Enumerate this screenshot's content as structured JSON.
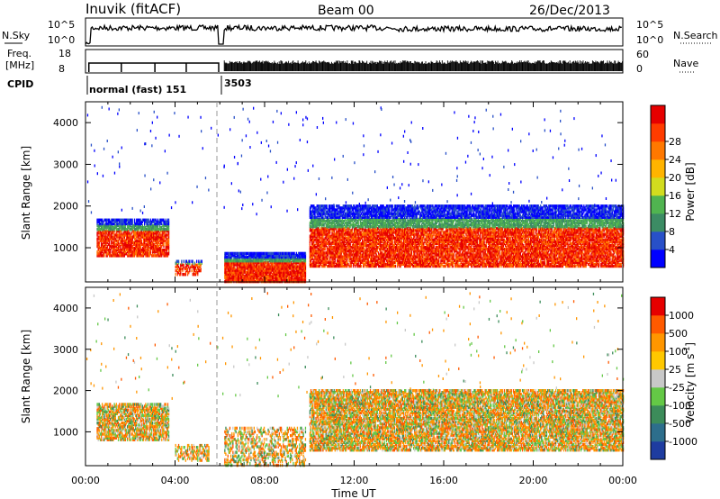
{
  "header": {
    "station": "Inuvik (fitACF)",
    "beam": "Beam 00",
    "date": "26/Dec/2013"
  },
  "top_panel": {
    "left_label": "N.Sky",
    "left_ticks": [
      "10^5",
      "10^0"
    ],
    "right_label": "N.Search",
    "right_ticks": [
      "10^5",
      "10^0"
    ]
  },
  "freq_panel": {
    "left_label_1": "Freq.",
    "left_label_2": "[MHz]",
    "left_ticks": [
      "18",
      "8"
    ],
    "right_label": "Nave",
    "right_ticks": [
      "60",
      "0"
    ]
  },
  "cpid": {
    "label": "CPID",
    "mode_1": "normal (fast) 151",
    "mode_2": "3503"
  },
  "chart_data": [
    {
      "type": "heatmap",
      "name": "Power",
      "xlabel": "",
      "ylabel": "Slant Range [km]",
      "x_ticks": [
        "00:00",
        "04:00",
        "08:00",
        "12:00",
        "16:00",
        "20:00",
        "00:00"
      ],
      "y_ticks": [
        "1000",
        "2000",
        "3000",
        "4000"
      ],
      "xlim_hours": [
        0,
        24
      ],
      "ylim_km": [
        180,
        4500
      ],
      "colorbar": {
        "label": "Power [dB]",
        "ticks": [
          "4",
          "8",
          "12",
          "16",
          "20",
          "24",
          "28"
        ],
        "colors": [
          "#0000ff",
          "#2850c8",
          "#3c8c64",
          "#50b450",
          "#d2dc1e",
          "#ffb400",
          "#ff7800",
          "#ff3c00",
          "#e60000"
        ]
      },
      "scatter_regions": [
        {
          "t0": 0.5,
          "t1": 3.7,
          "r0": 800,
          "r1": 1700,
          "level": 0.85
        },
        {
          "t0": 4.0,
          "t1": 5.2,
          "r0": 350,
          "r1": 700,
          "level": 0.55
        },
        {
          "t0": 6.2,
          "t1": 9.8,
          "r0": 180,
          "r1": 900,
          "level": 0.95
        },
        {
          "t0": 10.0,
          "t1": 24.0,
          "r0": 550,
          "r1": 2000,
          "level": 0.85
        }
      ]
    },
    {
      "type": "heatmap",
      "name": "Velocity",
      "xlabel": "Time UT",
      "ylabel": "Slant Range [km]",
      "x_ticks": [
        "00:00",
        "04:00",
        "08:00",
        "12:00",
        "16:00",
        "20:00",
        "00:00"
      ],
      "y_ticks": [
        "1000",
        "2000",
        "3000",
        "4000"
      ],
      "xlim_hours": [
        0,
        24
      ],
      "ylim_km": [
        180,
        4500
      ],
      "colorbar": {
        "label": "Velocity [m s",
        "label_sup": "-1",
        "label_end": "]",
        "ticks": [
          "1000",
          "500",
          "100",
          "25",
          "-25",
          "-100",
          "-500",
          "-1000"
        ],
        "colors": [
          "#1e3ca0",
          "#2d6e8c",
          "#3c8c5a",
          "#64c846",
          "#c8c8c8",
          "#ffc800",
          "#ff9600",
          "#ff5a00",
          "#e60000"
        ]
      },
      "scatter_regions": [
        {
          "t0": 0.5,
          "t1": 3.7,
          "r0": 800,
          "r1": 1700,
          "level": 0.7
        },
        {
          "t0": 4.0,
          "t1": 5.5,
          "r0": 300,
          "r1": 700,
          "level": 0.5
        },
        {
          "t0": 6.2,
          "t1": 9.8,
          "r0": 180,
          "r1": 1100,
          "level": 0.4
        },
        {
          "t0": 10.0,
          "t1": 24.0,
          "r0": 550,
          "r1": 2000,
          "level": 0.75
        }
      ]
    }
  ]
}
